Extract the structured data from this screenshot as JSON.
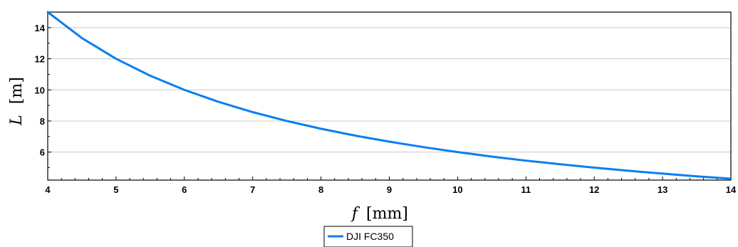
{
  "chart_data": {
    "type": "line",
    "title": "",
    "xlabel_var": "f",
    "xlabel_unit": "[mm]",
    "ylabel_var": "L",
    "ylabel_unit": "[m]",
    "xlim": [
      4,
      14
    ],
    "ylim": [
      4.2,
      15
    ],
    "x_ticks": [
      4,
      5,
      6,
      7,
      8,
      9,
      10,
      11,
      12,
      13,
      14
    ],
    "y_ticks": [
      6,
      8,
      10,
      12,
      14
    ],
    "grid": "horizontal",
    "legend": "bottom-center",
    "series": [
      {
        "name": "DJI FC350",
        "color": "#0a7ef0",
        "x": [
          4,
          4.5,
          5,
          5.5,
          6,
          6.5,
          7,
          7.5,
          8,
          8.5,
          9,
          9.5,
          10,
          10.5,
          11,
          11.5,
          12,
          12.5,
          13,
          13.5,
          14
        ],
        "y": [
          15,
          13.33,
          12,
          10.91,
          10,
          9.23,
          8.57,
          8,
          7.5,
          7.06,
          6.67,
          6.32,
          6,
          5.71,
          5.45,
          5.22,
          5,
          4.8,
          4.62,
          4.44,
          4.29
        ]
      }
    ]
  }
}
